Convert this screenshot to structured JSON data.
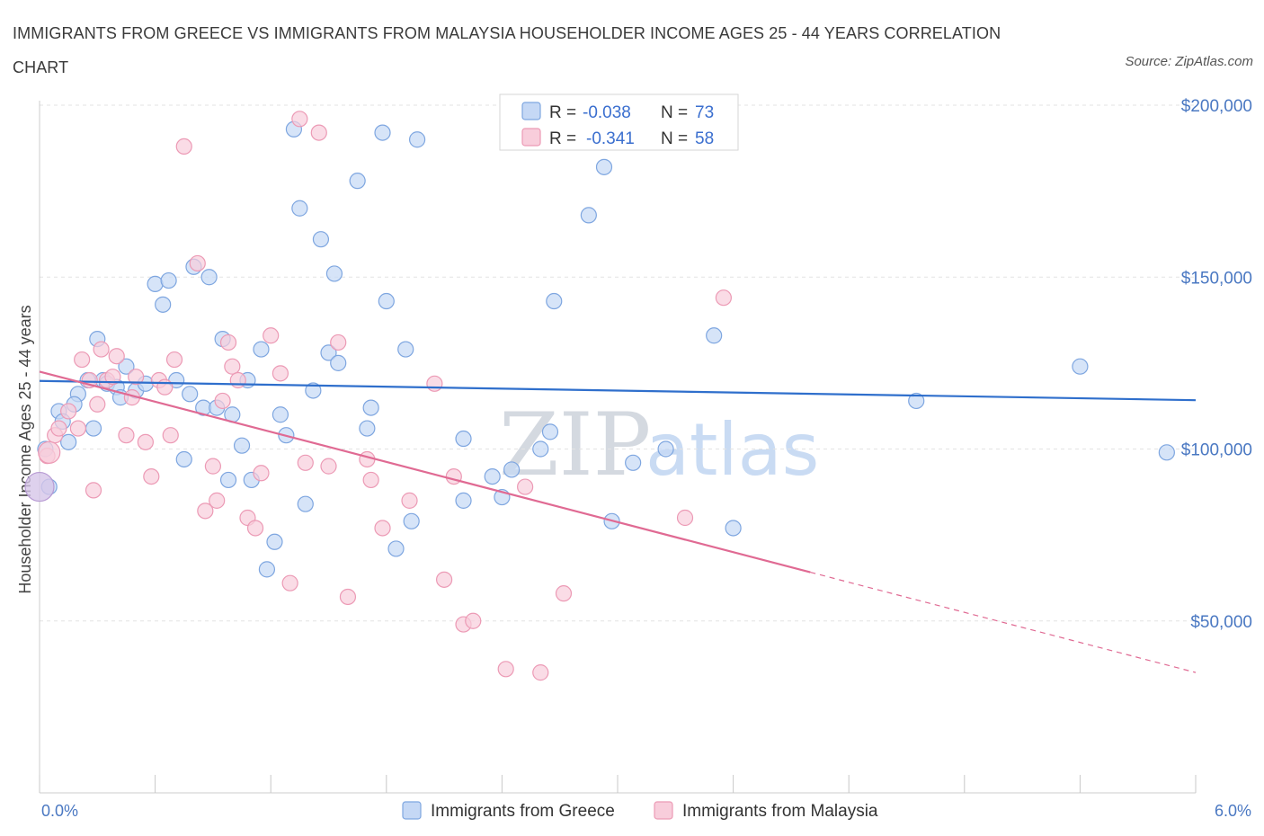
{
  "title": "IMMIGRANTS FROM GREECE VS IMMIGRANTS FROM MALAYSIA HOUSEHOLDER INCOME AGES 25 - 44 YEARS CORRELATION CHART",
  "source": "Source: ZipAtlas.com",
  "watermark": {
    "zip": "ZIP",
    "atlas": "atlas"
  },
  "legend_box": {
    "rows": [
      {
        "r_label": "R = ",
        "r_value": "-0.038",
        "n_label": "N = ",
        "n_value": "73"
      },
      {
        "r_label": "R = ",
        "r_value": "-0.341",
        "n_label": "N = ",
        "n_value": "58"
      }
    ]
  },
  "colors": {
    "greece_fill": "#c5d8f5",
    "greece_stroke": "#7ea6e0",
    "greece_line": "#2f6fcc",
    "malaysia_fill": "#f8cddb",
    "malaysia_stroke": "#ec9ab5",
    "malaysia_line": "#e06a93",
    "grid": "#e3e3e3",
    "tick_label": "#4a78c2"
  },
  "chart_data": {
    "type": "scatter",
    "title": "IMMIGRANTS FROM GREECE VS IMMIGRANTS FROM MALAYSIA HOUSEHOLDER INCOME AGES 25 - 44 YEARS CORRELATION CHART",
    "xlabel": "",
    "ylabel": "Householder Income Ages 25 - 44 years",
    "xlim": [
      0,
      6
    ],
    "ylim": [
      0,
      210000
    ],
    "x_tick_labels": [
      "0.0%",
      "6.0%"
    ],
    "y_ticks": [
      50000,
      100000,
      150000,
      200000
    ],
    "y_tick_labels": [
      "$50,000",
      "$100,000",
      "$150,000",
      "$200,000"
    ],
    "grid": true,
    "legend_position": "bottom",
    "series": [
      {
        "name": "Immigrants from Greece",
        "R": -0.038,
        "N": 73,
        "trend": {
          "x": [
            0.0,
            6.0
          ],
          "y": [
            119800,
            114200
          ],
          "dashed_from": null
        },
        "points": [
          [
            0.03,
            100000
          ],
          [
            0.1,
            111000
          ],
          [
            0.15,
            102000
          ],
          [
            0.2,
            116000
          ],
          [
            0.25,
            120000
          ],
          [
            0.28,
            106000
          ],
          [
            0.3,
            132000
          ],
          [
            0.33,
            120000
          ],
          [
            0.35,
            119000
          ],
          [
            0.4,
            118000
          ],
          [
            0.42,
            115000
          ],
          [
            0.45,
            124000
          ],
          [
            0.5,
            117000
          ],
          [
            0.6,
            148000
          ],
          [
            0.64,
            142000
          ],
          [
            0.67,
            149000
          ],
          [
            0.71,
            120000
          ],
          [
            0.75,
            97000
          ],
          [
            0.78,
            116000
          ],
          [
            0.8,
            153000
          ],
          [
            0.85,
            112000
          ],
          [
            0.88,
            150000
          ],
          [
            0.92,
            112000
          ],
          [
            0.95,
            132000
          ],
          [
            0.98,
            91000
          ],
          [
            1.0,
            110000
          ],
          [
            1.05,
            101000
          ],
          [
            1.08,
            120000
          ],
          [
            1.1,
            91000
          ],
          [
            1.15,
            129000
          ],
          [
            1.18,
            65000
          ],
          [
            1.22,
            73000
          ],
          [
            1.25,
            110000
          ],
          [
            1.28,
            104000
          ],
          [
            1.32,
            193000
          ],
          [
            1.35,
            170000
          ],
          [
            1.38,
            84000
          ],
          [
            1.42,
            117000
          ],
          [
            1.46,
            161000
          ],
          [
            1.5,
            128000
          ],
          [
            1.53,
            151000
          ],
          [
            1.55,
            125000
          ],
          [
            1.65,
            178000
          ],
          [
            1.7,
            106000
          ],
          [
            1.72,
            112000
          ],
          [
            1.78,
            192000
          ],
          [
            1.8,
            143000
          ],
          [
            1.85,
            71000
          ],
          [
            1.9,
            129000
          ],
          [
            1.93,
            79000
          ],
          [
            1.96,
            190000
          ],
          [
            2.2,
            103000
          ],
          [
            2.2,
            85000
          ],
          [
            2.35,
            92000
          ],
          [
            2.4,
            86000
          ],
          [
            2.45,
            94000
          ],
          [
            2.6,
            100000
          ],
          [
            2.65,
            105000
          ],
          [
            2.67,
            143000
          ],
          [
            2.85,
            168000
          ],
          [
            2.93,
            182000
          ],
          [
            2.97,
            79000
          ],
          [
            3.08,
            96000
          ],
          [
            3.25,
            100000
          ],
          [
            3.5,
            133000
          ],
          [
            3.6,
            77000
          ],
          [
            4.55,
            114000
          ],
          [
            5.4,
            124000
          ],
          [
            5.85,
            99000
          ],
          [
            0.05,
            89000
          ],
          [
            0.12,
            108000
          ],
          [
            0.18,
            113000
          ],
          [
            0.55,
            119000
          ]
        ]
      },
      {
        "name": "Immigrants from Malaysia",
        "R": -0.341,
        "N": 58,
        "trend": {
          "x": [
            0.0,
            6.0
          ],
          "y": [
            122500,
            35000
          ],
          "dashed_from": 4.0
        },
        "points": [
          [
            0.04,
            98000
          ],
          [
            0.08,
            104000
          ],
          [
            0.15,
            111000
          ],
          [
            0.22,
            126000
          ],
          [
            0.26,
            120000
          ],
          [
            0.28,
            88000
          ],
          [
            0.3,
            113000
          ],
          [
            0.32,
            129000
          ],
          [
            0.35,
            120000
          ],
          [
            0.4,
            127000
          ],
          [
            0.45,
            104000
          ],
          [
            0.48,
            115000
          ],
          [
            0.5,
            121000
          ],
          [
            0.55,
            102000
          ],
          [
            0.58,
            92000
          ],
          [
            0.62,
            120000
          ],
          [
            0.68,
            104000
          ],
          [
            0.7,
            126000
          ],
          [
            0.75,
            188000
          ],
          [
            0.82,
            154000
          ],
          [
            0.86,
            82000
          ],
          [
            0.9,
            95000
          ],
          [
            0.92,
            85000
          ],
          [
            0.95,
            114000
          ],
          [
            0.98,
            131000
          ],
          [
            1.0,
            124000
          ],
          [
            1.03,
            120000
          ],
          [
            1.08,
            80000
          ],
          [
            1.12,
            77000
          ],
          [
            1.15,
            93000
          ],
          [
            1.2,
            133000
          ],
          [
            1.25,
            122000
          ],
          [
            1.3,
            61000
          ],
          [
            1.35,
            196000
          ],
          [
            1.38,
            96000
          ],
          [
            1.45,
            192000
          ],
          [
            1.5,
            95000
          ],
          [
            1.55,
            131000
          ],
          [
            1.6,
            57000
          ],
          [
            1.7,
            97000
          ],
          [
            1.72,
            91000
          ],
          [
            1.78,
            77000
          ],
          [
            1.92,
            85000
          ],
          [
            2.05,
            119000
          ],
          [
            2.1,
            62000
          ],
          [
            2.15,
            92000
          ],
          [
            2.2,
            49000
          ],
          [
            2.25,
            50000
          ],
          [
            2.42,
            36000
          ],
          [
            2.52,
            89000
          ],
          [
            2.6,
            35000
          ],
          [
            2.72,
            58000
          ],
          [
            3.35,
            80000
          ],
          [
            3.55,
            144000
          ],
          [
            0.1,
            106000
          ],
          [
            0.2,
            106000
          ],
          [
            0.38,
            121000
          ],
          [
            0.65,
            118000
          ]
        ]
      }
    ]
  },
  "axis": {
    "ylabel": "Householder Income Ages 25 - 44 years",
    "x_left": "0.0%",
    "x_right": "6.0%",
    "y_labels": [
      "$200,000",
      "$150,000",
      "$100,000",
      "$50,000"
    ]
  },
  "bottom_legend": [
    "Immigrants from Greece",
    "Immigrants from Malaysia"
  ]
}
